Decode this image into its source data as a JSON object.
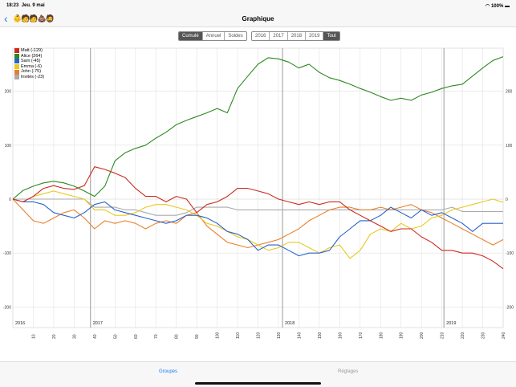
{
  "status": {
    "time": "18:23",
    "date": "Jeu. 9 mai",
    "battery": "100%"
  },
  "nav": {
    "title": "Graphique",
    "back_icon": "chevron-left",
    "avatars": "👶🧑🧑💩🧔"
  },
  "mode_segments": [
    {
      "label": "Cumulé",
      "selected": true
    },
    {
      "label": "Annuel",
      "selected": false
    },
    {
      "label": "Soldes",
      "selected": false
    }
  ],
  "period_segments": [
    {
      "label": "2016",
      "selected": false
    },
    {
      "label": "2017",
      "selected": false
    },
    {
      "label": "2018",
      "selected": false
    },
    {
      "label": "2019",
      "selected": false
    },
    {
      "label": "Tout",
      "selected": true
    }
  ],
  "tabbar": {
    "groupes": "Groupes",
    "reglages": "Réglages",
    "active_color": "#1a7cf0"
  },
  "chart_data": {
    "type": "line",
    "xlim": [
      0,
      240
    ],
    "ylim": [
      -250,
      280
    ],
    "x_ticks": [
      10,
      20,
      30,
      40,
      50,
      60,
      70,
      80,
      90,
      100,
      110,
      120,
      130,
      140,
      150,
      160,
      170,
      180,
      190,
      200,
      210,
      220,
      230,
      240
    ],
    "y_ticks": [
      -200,
      -100,
      0,
      100,
      200
    ],
    "grid": true,
    "legend": "top-left",
    "year_markers": [
      {
        "label": "2016",
        "x": 0
      },
      {
        "label": "2017",
        "x": 38
      },
      {
        "label": "2018",
        "x": 132
      },
      {
        "label": "2019",
        "x": 211
      }
    ],
    "x": [
      0,
      5,
      10,
      15,
      20,
      25,
      30,
      35,
      40,
      45,
      50,
      55,
      60,
      65,
      70,
      75,
      80,
      85,
      90,
      95,
      100,
      105,
      110,
      115,
      120,
      125,
      130,
      135,
      140,
      145,
      150,
      155,
      160,
      165,
      170,
      175,
      180,
      185,
      190,
      195,
      200,
      205,
      210,
      215,
      220,
      225,
      230,
      235,
      240
    ],
    "series": [
      {
        "name": "Matt (-129)",
        "color": "#cc2a1e",
        "values": [
          0,
          -5,
          5,
          20,
          25,
          20,
          18,
          25,
          60,
          55,
          48,
          40,
          20,
          5,
          5,
          -5,
          5,
          0,
          -25,
          -10,
          -5,
          5,
          20,
          20,
          15,
          10,
          0,
          -5,
          -10,
          -5,
          -10,
          -5,
          -5,
          -20,
          -30,
          -40,
          -50,
          -60,
          -55,
          -55,
          -70,
          -80,
          -95,
          -95,
          -100,
          -100,
          -105,
          -115,
          -129
        ]
      },
      {
        "name": "Alice (264)",
        "color": "#2a8a1e",
        "values": [
          0,
          16,
          24,
          30,
          33,
          30,
          24,
          15,
          5,
          24,
          71,
          86,
          94,
          100,
          113,
          124,
          138,
          146,
          153,
          160,
          168,
          160,
          205,
          228,
          250,
          262,
          260,
          254,
          243,
          250,
          235,
          225,
          220,
          213,
          205,
          198,
          190,
          183,
          187,
          183,
          193,
          198,
          205,
          210,
          213,
          228,
          243,
          257,
          264
        ]
      },
      {
        "name": "Sam (-45)",
        "color": "#2a62c8",
        "values": [
          0,
          -5,
          -5,
          -10,
          -25,
          -30,
          -35,
          -25,
          -10,
          -5,
          -20,
          -25,
          -30,
          -35,
          -40,
          -45,
          -40,
          -30,
          -30,
          -35,
          -45,
          -60,
          -65,
          -75,
          -95,
          -85,
          -85,
          -95,
          -105,
          -100,
          -100,
          -95,
          -70,
          -55,
          -40,
          -40,
          -30,
          -15,
          -25,
          -35,
          -20,
          -30,
          -25,
          -35,
          -45,
          -60,
          -45,
          -45,
          -45
        ]
      },
      {
        "name": "Emma (-6)",
        "color": "#e8c81e",
        "values": [
          0,
          -5,
          5,
          10,
          15,
          10,
          5,
          0,
          -20,
          -20,
          -30,
          -30,
          -25,
          -15,
          -10,
          -10,
          -15,
          -20,
          -30,
          -45,
          -50,
          -60,
          -70,
          -75,
          -85,
          -95,
          -90,
          -80,
          -80,
          -90,
          -100,
          -90,
          -85,
          -110,
          -95,
          -65,
          -55,
          -60,
          -45,
          -55,
          -50,
          -35,
          -30,
          -20,
          -15,
          -10,
          -5,
          0,
          -6
        ]
      },
      {
        "name": "John (-75)",
        "color": "#e8802a",
        "values": [
          0,
          -20,
          -40,
          -45,
          -35,
          -25,
          -20,
          -35,
          -55,
          -40,
          -45,
          -40,
          -45,
          -55,
          -45,
          -40,
          -45,
          -30,
          -25,
          -50,
          -65,
          -80,
          -85,
          -90,
          -85,
          -80,
          -75,
          -65,
          -55,
          -40,
          -30,
          -20,
          -15,
          -15,
          -20,
          -20,
          -15,
          -20,
          -15,
          -10,
          -20,
          -25,
          -35,
          -45,
          -55,
          -65,
          -75,
          -85,
          -75
        ]
      },
      {
        "name": "Invités (-23)",
        "color": "#aaaaaa",
        "values": [
          0,
          0,
          0,
          0,
          0,
          0,
          0,
          0,
          -15,
          -15,
          -15,
          -20,
          -20,
          -25,
          -30,
          -30,
          -30,
          -25,
          -15,
          -15,
          -15,
          -15,
          -20,
          -20,
          -20,
          -20,
          -20,
          -20,
          -20,
          -20,
          -20,
          -20,
          -20,
          -20,
          -20,
          -20,
          -20,
          -20,
          -20,
          -20,
          -20,
          -20,
          -20,
          -15,
          -23,
          -23,
          -23,
          -23,
          -23
        ]
      }
    ]
  }
}
